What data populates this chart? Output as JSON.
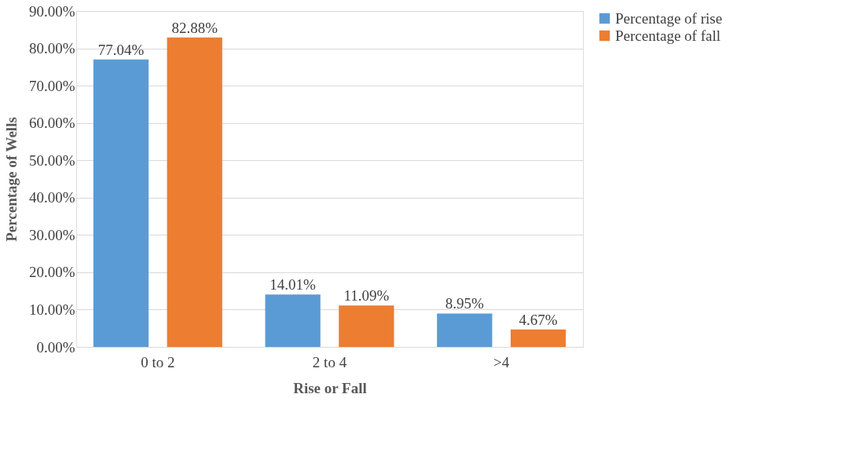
{
  "chart_data": {
    "type": "bar",
    "xlabel": "Rise or Fall",
    "ylabel": "Percentage of Wells",
    "categories": [
      "0 to 2",
      "2 to 4",
      ">4"
    ],
    "series": [
      {
        "name": "Percentage of rise",
        "color": "#5b9bd5",
        "values": [
          77.04,
          14.01,
          8.95
        ],
        "value_labels": [
          "77.04%",
          "14.01%",
          "8.95%"
        ]
      },
      {
        "name": "Percentage of fall",
        "color": "#ed7d31",
        "values": [
          82.88,
          11.09,
          4.67
        ],
        "value_labels": [
          "82.88%",
          "11.09%",
          "4.67%"
        ]
      }
    ],
    "ylim": [
      0,
      90
    ],
    "yticks": [
      {
        "value": 0,
        "label": "0.00%"
      },
      {
        "value": 10,
        "label": "10.00%"
      },
      {
        "value": 20,
        "label": "20.00%"
      },
      {
        "value": 30,
        "label": "30.00%"
      },
      {
        "value": 40,
        "label": "40.00%"
      },
      {
        "value": 50,
        "label": "50.00%"
      },
      {
        "value": 60,
        "label": "60.00%"
      },
      {
        "value": 70,
        "label": "70.00%"
      },
      {
        "value": 80,
        "label": "80.00%"
      },
      {
        "value": 90,
        "label": "90.00%"
      }
    ],
    "grid": "y",
    "legend": "right"
  }
}
